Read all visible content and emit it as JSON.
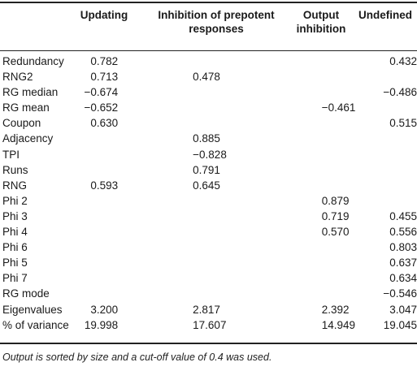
{
  "headers": {
    "updating": "Updating",
    "inhibition_line1": "Inhibition of prepotent",
    "inhibition_line2": "responses",
    "output_line1": "Output",
    "output_line2": "inhibition",
    "undefined": "Undefined"
  },
  "rows": [
    {
      "name": "Redundancy",
      "v1": "0.782",
      "v2": "",
      "v3": "",
      "v4": "0.432"
    },
    {
      "name": "RNG2",
      "v1": "0.713",
      "v2": "0.478",
      "v3": "",
      "v4": ""
    },
    {
      "name": "RG median",
      "v1": "−0.674",
      "v2": "",
      "v3": "",
      "v4": "−0.486"
    },
    {
      "name": "RG mean",
      "v1": "−0.652",
      "v2": "",
      "v3": "−0.461",
      "v4": ""
    },
    {
      "name": "Coupon",
      "v1": "0.630",
      "v2": "",
      "v3": "",
      "v4": "0.515"
    },
    {
      "name": "Adjacency",
      "v1": "",
      "v2": "0.885",
      "v3": "",
      "v4": ""
    },
    {
      "name": "TPI",
      "v1": "",
      "v2": "−0.828",
      "v3": "",
      "v4": ""
    },
    {
      "name": "Runs",
      "v1": "",
      "v2": "0.791",
      "v3": "",
      "v4": ""
    },
    {
      "name": "RNG",
      "v1": "0.593",
      "v2": "0.645",
      "v3": "",
      "v4": ""
    },
    {
      "name": "Phi 2",
      "v1": "",
      "v2": "",
      "v3": "0.879",
      "v4": ""
    },
    {
      "name": "Phi 3",
      "v1": "",
      "v2": "",
      "v3": "0.719",
      "v4": "0.455"
    },
    {
      "name": "Phi 4",
      "v1": "",
      "v2": "",
      "v3": "0.570",
      "v4": "0.556"
    },
    {
      "name": "Phi 6",
      "v1": "",
      "v2": "",
      "v3": "",
      "v4": "0.803"
    },
    {
      "name": "Phi 5",
      "v1": "",
      "v2": "",
      "v3": "",
      "v4": "0.637"
    },
    {
      "name": "Phi 7",
      "v1": "",
      "v2": "",
      "v3": "",
      "v4": "0.634"
    },
    {
      "name": "RG mode",
      "v1": "",
      "v2": "",
      "v3": "",
      "v4": "−0.546"
    },
    {
      "name": "Eigenvalues",
      "v1": "3.200",
      "v2": "2.817",
      "v3": "2.392",
      "v4": "3.047"
    },
    {
      "name": "% of variance",
      "v1": "19.998",
      "v2": "17.607",
      "v3": "14.949",
      "v4": "19.045"
    }
  ],
  "note": "Output is sorted by size and a cut-off value of 0.4 was used."
}
